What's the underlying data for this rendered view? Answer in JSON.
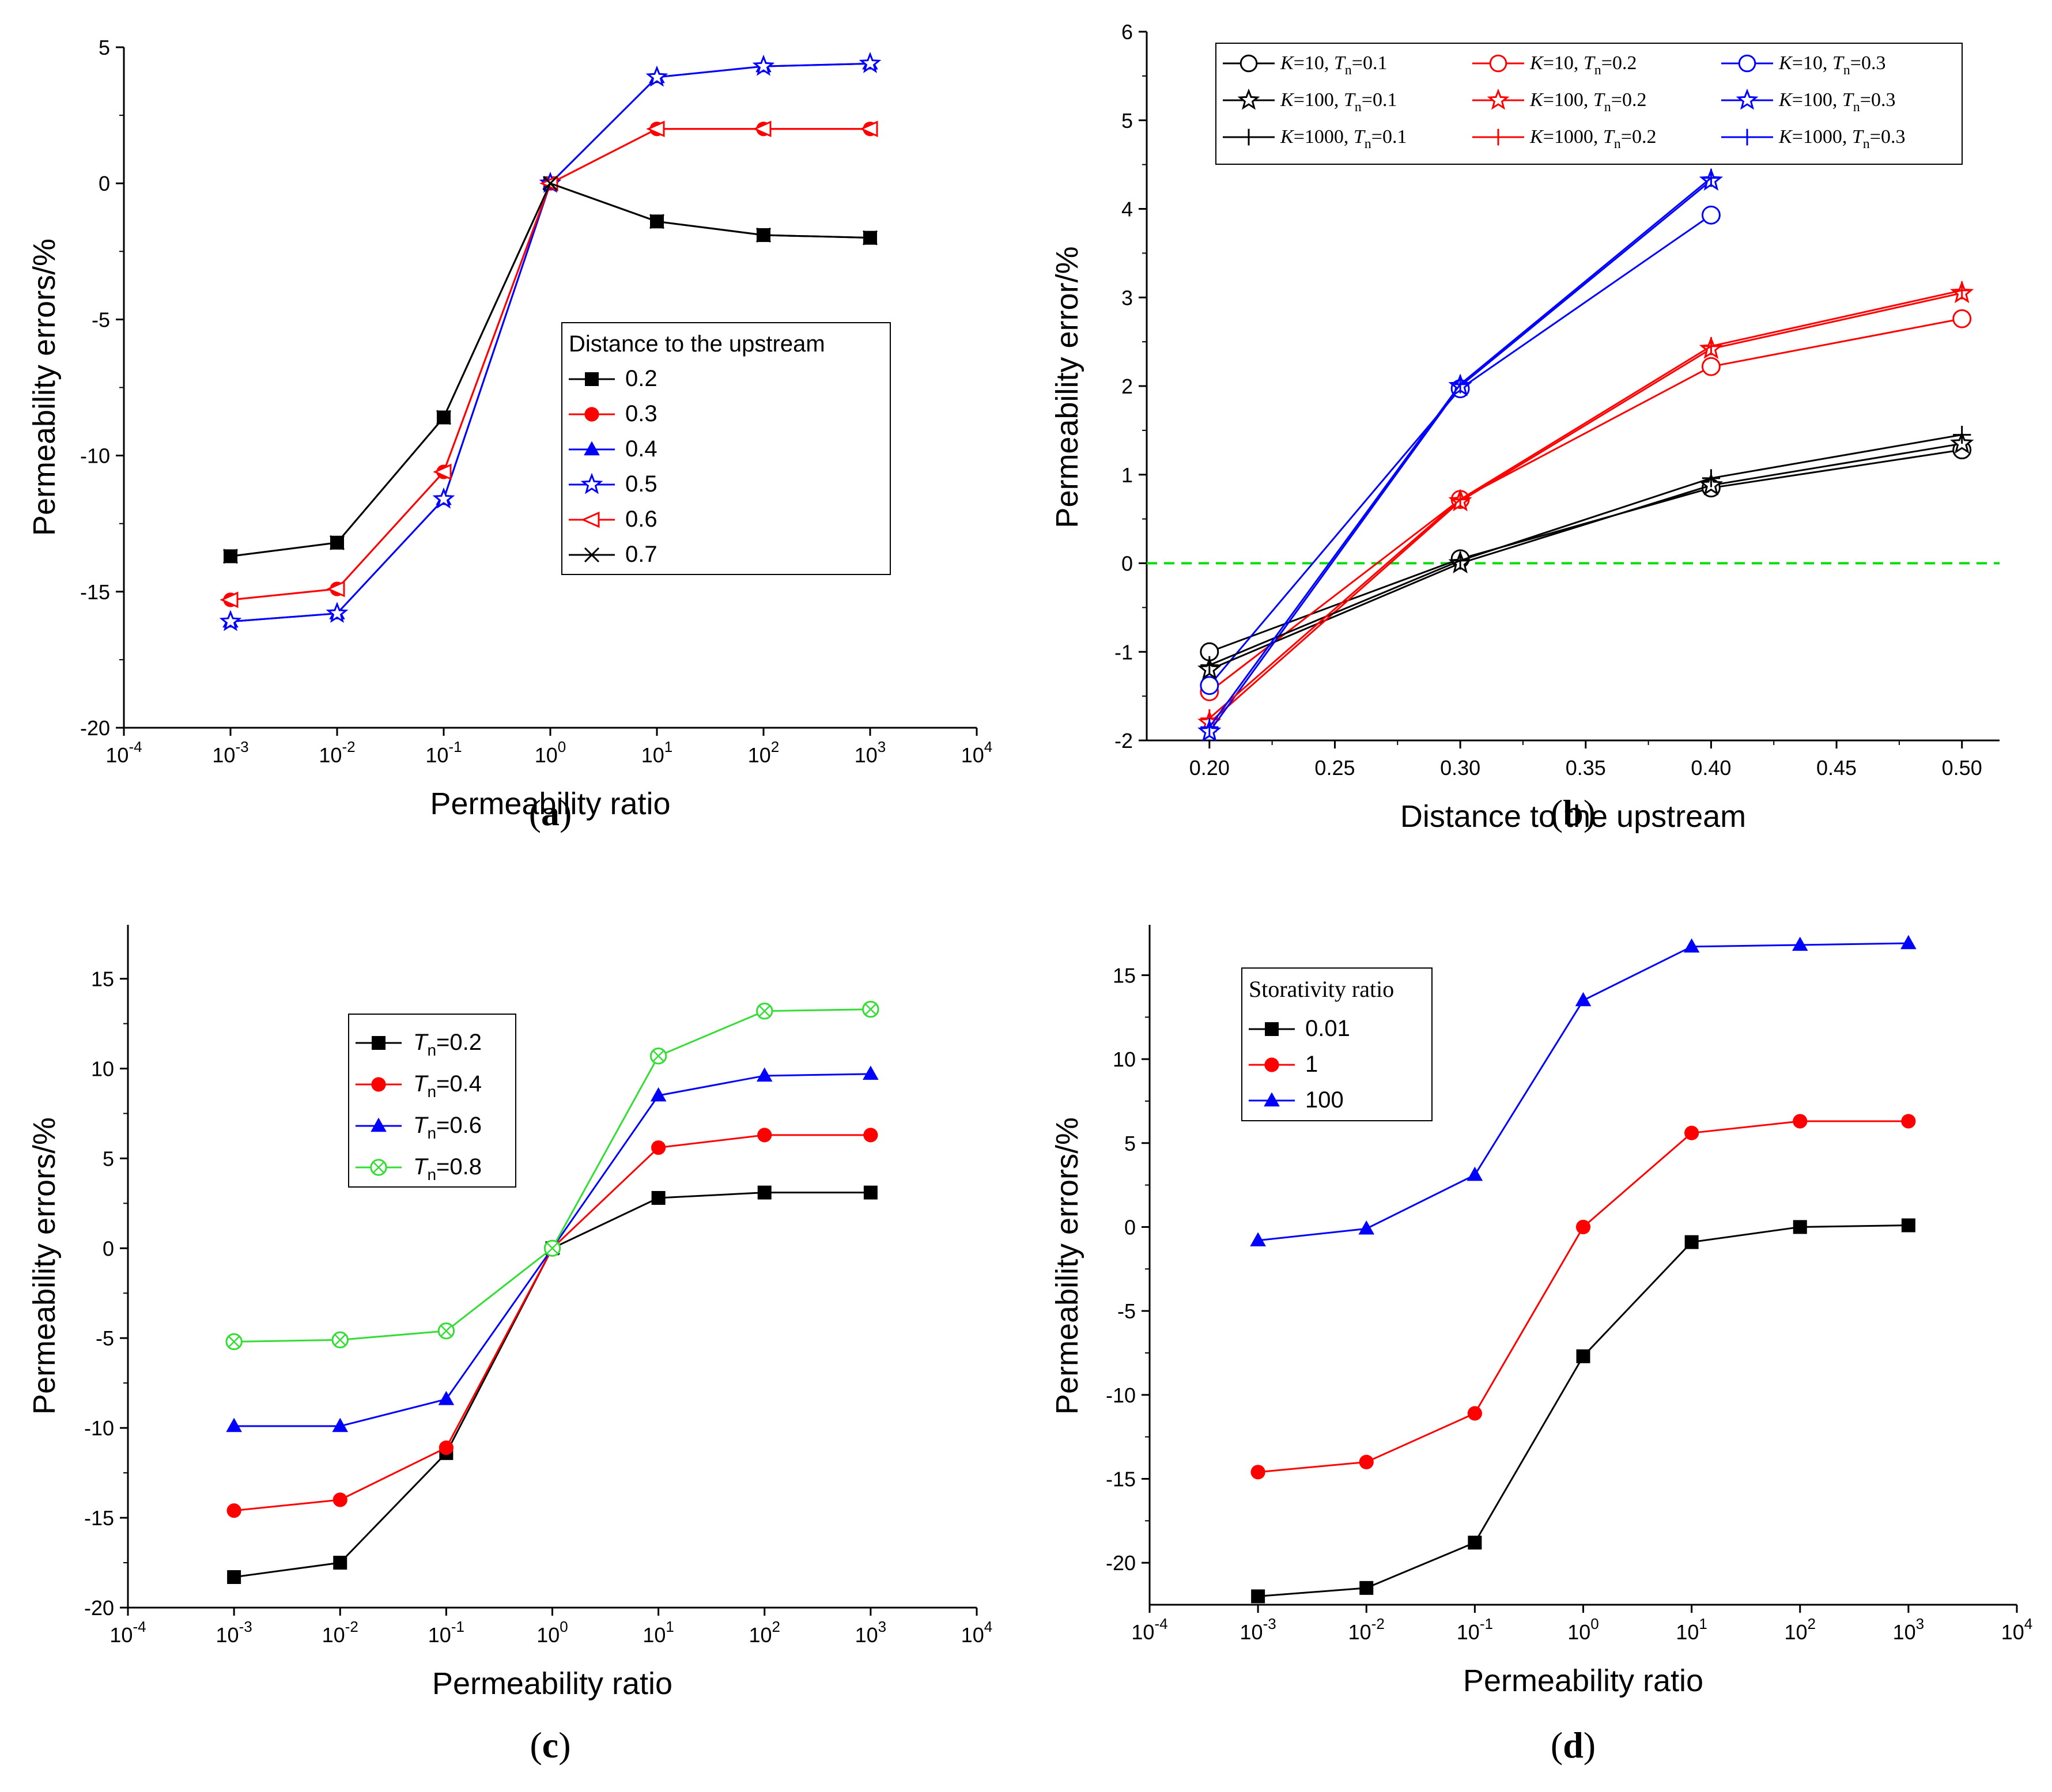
{
  "chart_data": [
    {
      "panel": "a",
      "type": "line",
      "panel_label": "(a)",
      "xlabel": "Permeability ratio",
      "ylabel": "Permeability errors/%",
      "xscale": "log",
      "xlim": [
        -4,
        4
      ],
      "xticks": [
        -4,
        -3,
        -2,
        -1,
        0,
        1,
        2,
        3,
        4
      ],
      "ylim": [
        -20,
        5
      ],
      "yticks": [
        5,
        0,
        -5,
        -10,
        -15,
        -20
      ],
      "x": [
        -3,
        -2,
        -1,
        0,
        1,
        2,
        3
      ],
      "legend_title": "Distance to the upstream",
      "legend_position": "center-right",
      "series": [
        {
          "name": "0.2",
          "color": "#000000",
          "marker": "square",
          "values": [
            -13.7,
            -13.2,
            -8.6,
            0,
            -1.4,
            -1.9,
            -2.0
          ]
        },
        {
          "name": "0.3",
          "color": "#ff0000",
          "marker": "circle",
          "values": [
            -15.3,
            -14.9,
            -10.6,
            0,
            2.0,
            2.0,
            2.0
          ]
        },
        {
          "name": "0.4",
          "color": "#0000ff",
          "marker": "triangle",
          "values": [
            -16.1,
            -15.8,
            -11.6,
            0,
            3.9,
            4.3,
            4.4
          ]
        },
        {
          "name": "0.5",
          "color": "#0000ff",
          "marker": "star-open",
          "values": [
            -16.1,
            -15.8,
            -11.6,
            0,
            3.9,
            4.3,
            4.4
          ]
        },
        {
          "name": "0.6",
          "color": "#ff0000",
          "marker": "triangle-left-open",
          "values": [
            -15.3,
            -14.9,
            -10.6,
            0,
            2.0,
            2.0,
            2.0
          ]
        },
        {
          "name": "0.7",
          "color": "#000000",
          "marker": "x",
          "values": [
            -13.7,
            -13.2,
            -8.6,
            0,
            -1.4,
            -1.9,
            -2.0
          ]
        }
      ]
    },
    {
      "panel": "b",
      "type": "line",
      "panel_label": "(b)",
      "xlabel": "Distance to the upstream",
      "ylabel": "Permeability error/%",
      "xlim": [
        0.175,
        0.515
      ],
      "xticks": [
        "0.20",
        "0.25",
        "0.30",
        "0.35",
        "0.40",
        "0.45",
        "0.50"
      ],
      "ylim": [
        -2,
        6
      ],
      "yticks": [
        6,
        5,
        4,
        3,
        2,
        1,
        0,
        -1,
        -2
      ],
      "reference_line": {
        "y": 0,
        "color": "#00dd00",
        "style": "dashed"
      },
      "legend_position": "top",
      "series": [
        {
          "name": "K=10, Tn=0.1",
          "K": "10",
          "Tn": "0.1",
          "color": "#000000",
          "marker": "circle-open",
          "x": [
            0.2,
            0.3,
            0.4,
            0.5
          ],
          "values": [
            -1.0,
            0.05,
            0.85,
            1.28
          ]
        },
        {
          "name": "K=10, Tn=0.2",
          "K": "10",
          "Tn": "0.2",
          "color": "#ff0000",
          "marker": "circle-open",
          "x": [
            0.2,
            0.3,
            0.4,
            0.5
          ],
          "values": [
            -1.45,
            0.72,
            2.22,
            2.76
          ]
        },
        {
          "name": "K=10, Tn=0.3",
          "K": "10",
          "Tn": "0.3",
          "color": "#0000ff",
          "marker": "circle-open",
          "x": [
            0.2,
            0.3,
            0.4
          ],
          "values": [
            -1.38,
            1.97,
            3.93
          ]
        },
        {
          "name": "K=100, Tn=0.1",
          "K": "100",
          "Tn": "0.1",
          "color": "#000000",
          "marker": "star-open",
          "x": [
            0.2,
            0.3,
            0.4,
            0.5
          ],
          "values": [
            -1.2,
            0.0,
            0.88,
            1.35
          ]
        },
        {
          "name": "K=100, Tn=0.2",
          "K": "100",
          "Tn": "0.2",
          "color": "#ff0000",
          "marker": "star-open",
          "x": [
            0.2,
            0.3,
            0.4,
            0.5
          ],
          "values": [
            -1.8,
            0.7,
            2.42,
            3.05
          ]
        },
        {
          "name": "K=100, Tn=0.3",
          "K": "100",
          "Tn": "0.3",
          "color": "#0000ff",
          "marker": "star-open",
          "x": [
            0.2,
            0.3,
            0.4
          ],
          "values": [
            -1.9,
            2.0,
            4.32
          ]
        },
        {
          "name": "K=1000, Tn=0.1",
          "K": "1000",
          "Tn": "0.1",
          "color": "#000000",
          "marker": "plus",
          "x": [
            0.2,
            0.3,
            0.4,
            0.5
          ],
          "values": [
            -1.15,
            0.03,
            0.96,
            1.45
          ]
        },
        {
          "name": "K=1000, Tn=0.2",
          "K": "1000",
          "Tn": "0.2",
          "color": "#ff0000",
          "marker": "plus",
          "x": [
            0.2,
            0.3,
            0.4,
            0.5
          ],
          "values": [
            -1.75,
            0.72,
            2.45,
            3.08
          ]
        },
        {
          "name": "K=1000, Tn=0.3",
          "K": "1000",
          "Tn": "0.3",
          "color": "#0000ff",
          "marker": "plus",
          "x": [
            0.2,
            0.3,
            0.4
          ],
          "values": [
            -1.85,
            2.02,
            4.35
          ]
        }
      ]
    },
    {
      "panel": "c",
      "type": "line",
      "panel_label": "(c)",
      "xlabel": "Permeability ratio",
      "ylabel": "Permeability errors/%",
      "xscale": "log",
      "xlim": [
        -4,
        4
      ],
      "xticks": [
        -4,
        -3,
        -2,
        -1,
        0,
        1,
        2,
        3,
        4
      ],
      "ylim": [
        -20,
        18
      ],
      "yticks": [
        15,
        10,
        5,
        0,
        -5,
        -10,
        -15,
        -20
      ],
      "x": [
        -3,
        -2,
        -1,
        0,
        1,
        2,
        3
      ],
      "legend_position": "upper-left",
      "series": [
        {
          "name": "Tn=0.2",
          "Tn": "0.2",
          "color": "#000000",
          "marker": "square",
          "values": [
            -18.3,
            -17.5,
            -11.4,
            0,
            2.8,
            3.1,
            3.1
          ]
        },
        {
          "name": "Tn=0.4",
          "Tn": "0.4",
          "color": "#ff0000",
          "marker": "circle",
          "values": [
            -14.6,
            -14.0,
            -11.1,
            0,
            5.6,
            6.3,
            6.3
          ]
        },
        {
          "name": "Tn=0.6",
          "Tn": "0.6",
          "color": "#0000ff",
          "marker": "triangle",
          "values": [
            -9.9,
            -9.9,
            -8.4,
            0,
            8.5,
            9.6,
            9.7
          ]
        },
        {
          "name": "Tn=0.8",
          "Tn": "0.8",
          "color": "#33dd33",
          "marker": "circle-x-open",
          "values": [
            -5.2,
            -5.1,
            -4.6,
            0,
            10.7,
            13.2,
            13.3
          ]
        }
      ]
    },
    {
      "panel": "d",
      "type": "line",
      "panel_label": "(d)",
      "xlabel": "Permeability ratio",
      "ylabel": "Permeability errors/%",
      "xscale": "log",
      "xlim": [
        -4,
        4
      ],
      "xticks": [
        -4,
        -3,
        -2,
        -1,
        0,
        1,
        2,
        3,
        4
      ],
      "ylim": [
        -22.5,
        18
      ],
      "yticks": [
        15,
        10,
        5,
        0,
        -5,
        -10,
        -15,
        -20
      ],
      "x": [
        -3,
        -2,
        -1,
        0,
        1,
        2,
        3
      ],
      "legend_title": "Storativity ratio",
      "legend_position": "upper-left",
      "series": [
        {
          "name": "0.01",
          "color": "#000000",
          "marker": "square",
          "values": [
            -22.0,
            -21.5,
            -18.8,
            -7.7,
            -0.9,
            0.0,
            0.1
          ]
        },
        {
          "name": "1",
          "color": "#ff0000",
          "marker": "circle",
          "values": [
            -14.6,
            -14.0,
            -11.1,
            0.0,
            5.6,
            6.3,
            6.3
          ]
        },
        {
          "name": "100",
          "color": "#0000ff",
          "marker": "triangle",
          "values": [
            -0.8,
            -0.1,
            3.1,
            13.5,
            16.7,
            16.8,
            16.9
          ]
        }
      ]
    }
  ]
}
